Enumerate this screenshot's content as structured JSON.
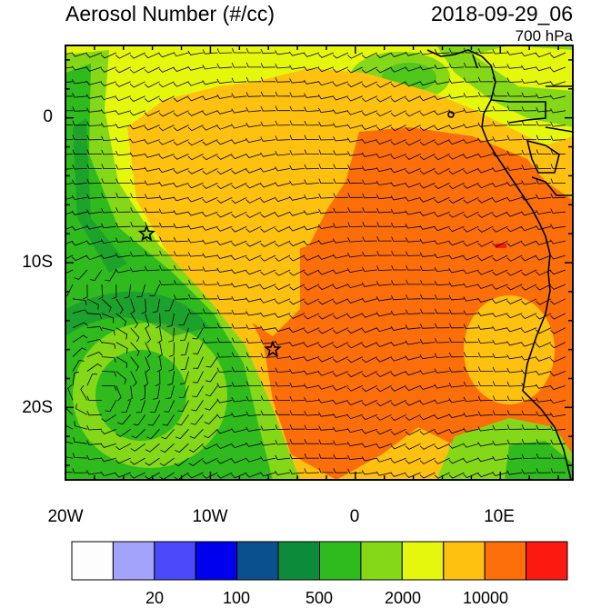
{
  "header": {
    "title": "Aerosol Number (#/cc)",
    "datetime": "2018-09-29_06",
    "level": "700 hPa"
  },
  "map": {
    "lat_ticks": [
      "0",
      "10S",
      "20S"
    ],
    "lon_ticks": [
      "20W",
      "10W",
      "0",
      "10E"
    ],
    "lon_range": [
      -20,
      15
    ],
    "lat_range": [
      -25,
      5
    ],
    "markers": [
      {
        "name": "star",
        "lon": -14.4,
        "lat": -8.0
      },
      {
        "name": "star",
        "lon": -5.7,
        "lat": -16.0
      }
    ]
  },
  "colorbar": {
    "colors": [
      "#fdfdfd",
      "#a3a3fb",
      "#4a4afb",
      "#0000ee",
      "#0a508f",
      "#0c8c3a",
      "#2fbb1e",
      "#84d818",
      "#e6f70e",
      "#fec110",
      "#fc6e0a",
      "#fc1a10"
    ],
    "labels": [
      "20",
      "100",
      "500",
      "2000",
      "10000"
    ]
  },
  "palette": {
    "ocean_high": "#fc6e0a",
    "ocean_mid": "#fec110",
    "ocean_low": "#e6f70e",
    "clean_1": "#84d818",
    "clean_2": "#2fbb1e",
    "clean_3": "#0c8c3a",
    "peak": "#fc1a10"
  }
}
